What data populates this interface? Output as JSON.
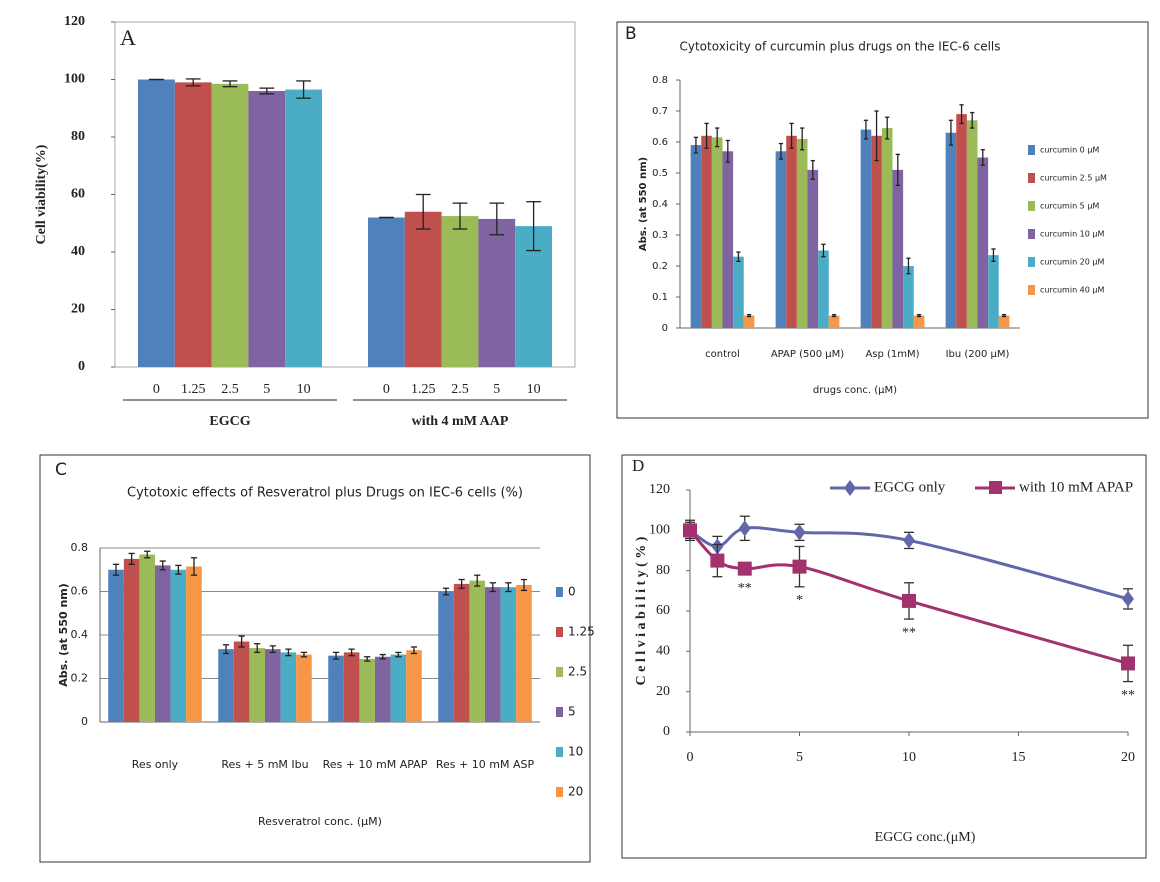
{
  "chart_data": [
    {
      "type": "bar",
      "label": "A",
      "ylabel": "Cell viability(%)",
      "categories": [
        "EGCG",
        "with 4 mM AAP"
      ],
      "series": [
        {
          "name": "0",
          "color": "#4f81bd",
          "values": [
            100,
            52
          ],
          "errors": [
            0,
            0
          ]
        },
        {
          "name": "1.25",
          "color": "#c0504d",
          "values": [
            99,
            54
          ],
          "errors": [
            1.2,
            6
          ]
        },
        {
          "name": "2.5",
          "color": "#9bbb59",
          "values": [
            98.5,
            52.5
          ],
          "errors": [
            1,
            4.5
          ]
        },
        {
          "name": "5",
          "color": "#8064a2",
          "values": [
            96,
            51.5
          ],
          "errors": [
            1,
            5.5
          ]
        },
        {
          "name": "10",
          "color": "#4bacc6",
          "values": [
            96.5,
            49
          ],
          "errors": [
            3,
            8.5
          ]
        }
      ],
      "ylim": [
        0,
        120
      ],
      "yticks": [
        0,
        20,
        40,
        60,
        80,
        100,
        120
      ],
      "grid": false,
      "legend": "below-bars"
    },
    {
      "type": "bar",
      "label": "B",
      "title": "Cytotoxicity of curcumin plus drugs on the IEC-6 cells",
      "ylabel": "Abs. (at 550 nm)",
      "xlabel": "drugs conc. (μM)",
      "categories": [
        "control",
        "APAP (500 μM)",
        "Asp (1mM)",
        "Ibu (200 μM)"
      ],
      "series": [
        {
          "name": "curcumin 0 μM",
          "color": "#4f81bd",
          "values": [
            0.59,
            0.57,
            0.64,
            0.63
          ],
          "errors": [
            0.025,
            0.025,
            0.03,
            0.04
          ]
        },
        {
          "name": "curcumin 2.5 μM",
          "color": "#c0504d",
          "values": [
            0.62,
            0.62,
            0.62,
            0.69
          ],
          "errors": [
            0.04,
            0.04,
            0.08,
            0.03
          ]
        },
        {
          "name": "curcumin 5 μM",
          "color": "#9bbb59",
          "values": [
            0.615,
            0.61,
            0.645,
            0.67
          ],
          "errors": [
            0.03,
            0.035,
            0.035,
            0.025
          ]
        },
        {
          "name": "curcumin 10 μM",
          "color": "#8064a2",
          "values": [
            0.57,
            0.51,
            0.51,
            0.55
          ],
          "errors": [
            0.035,
            0.03,
            0.05,
            0.025
          ]
        },
        {
          "name": "curcumin 20 μM",
          "color": "#4bacc6",
          "values": [
            0.23,
            0.25,
            0.2,
            0.235
          ],
          "errors": [
            0.015,
            0.02,
            0.025,
            0.02
          ]
        },
        {
          "name": "curcumin 40 μM",
          "color": "#f79646",
          "values": [
            0.04,
            0.04,
            0.04,
            0.04
          ],
          "errors": [
            0.003,
            0.003,
            0.003,
            0.003
          ]
        }
      ],
      "ylim": [
        0,
        0.8
      ],
      "yticks": [
        0,
        0.1,
        0.2,
        0.3,
        0.4,
        0.5,
        0.6,
        0.7,
        0.8
      ],
      "grid": false,
      "legend": "right"
    },
    {
      "type": "bar",
      "label": "C",
      "title": "Cytotoxic effects of Resveratrol plus Drugs on IEC-6 cells (%)",
      "ylabel": "Abs. (at 550 nm)",
      "xlabel": "Resveratrol  conc. (μM)",
      "categories": [
        "Res only",
        "Res + 5 mM Ibu",
        "Res + 10 mM APAP",
        "Res + 10 mM ASP"
      ],
      "series": [
        {
          "name": "0",
          "color": "#4f81bd",
          "values": [
            0.7,
            0.335,
            0.305,
            0.6
          ],
          "errors": [
            0.025,
            0.02,
            0.015,
            0.015
          ]
        },
        {
          "name": "1.25",
          "color": "#c0504d",
          "values": [
            0.75,
            0.37,
            0.32,
            0.635
          ],
          "errors": [
            0.025,
            0.025,
            0.015,
            0.02
          ]
        },
        {
          "name": "2.5",
          "color": "#9bbb59",
          "values": [
            0.77,
            0.34,
            0.29,
            0.65
          ],
          "errors": [
            0.015,
            0.02,
            0.01,
            0.025
          ]
        },
        {
          "name": "5",
          "color": "#8064a2",
          "values": [
            0.72,
            0.335,
            0.3,
            0.62
          ],
          "errors": [
            0.02,
            0.015,
            0.01,
            0.02
          ]
        },
        {
          "name": "10",
          "color": "#4bacc6",
          "values": [
            0.7,
            0.32,
            0.31,
            0.62
          ],
          "errors": [
            0.02,
            0.015,
            0.01,
            0.02
          ]
        },
        {
          "name": "20",
          "color": "#f79646",
          "values": [
            0.715,
            0.31,
            0.33,
            0.63
          ],
          "errors": [
            0.04,
            0.01,
            0.015,
            0.025
          ]
        }
      ],
      "ylim": [
        0,
        0.8
      ],
      "yticks": [
        0,
        0.2,
        0.4,
        0.6,
        0.8
      ],
      "grid": true,
      "legend": "right"
    },
    {
      "type": "line",
      "label": "D",
      "ylabel": "C e l l  v i a b i l i t y ( % )",
      "xlabel": "EGCG conc.(μM)",
      "x": [
        0,
        1.25,
        2.5,
        5,
        10,
        20
      ],
      "series": [
        {
          "name": "EGCG only",
          "color": "#6367aa",
          "marker": "diamond",
          "values": [
            100,
            92,
            101,
            99,
            95,
            66
          ],
          "errors": [
            4,
            5,
            6,
            4,
            4,
            5
          ]
        },
        {
          "name": "with 10 mM APAP",
          "color": "#a3316d",
          "marker": "square",
          "values": [
            100,
            85,
            81,
            82,
            65,
            34
          ],
          "errors": [
            5,
            8,
            3,
            10,
            9,
            9
          ]
        }
      ],
      "annotations": [
        null,
        null,
        "**",
        "*",
        "**",
        "**"
      ],
      "xlim": [
        0,
        20
      ],
      "xticks": [
        0,
        5,
        10,
        15,
        20
      ],
      "ylim": [
        0,
        120
      ],
      "yticks": [
        0,
        20,
        40,
        60,
        80,
        100,
        120
      ],
      "grid": false,
      "legend": "top"
    }
  ]
}
